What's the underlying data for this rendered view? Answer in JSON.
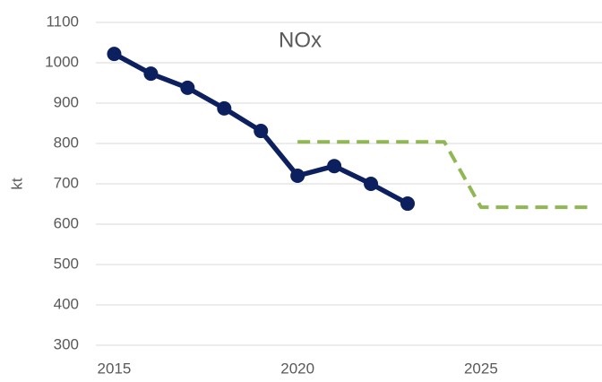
{
  "chart_data": {
    "type": "line",
    "title": "NOx",
    "y_label": "kt",
    "series": [
      {
        "color": "#0c1f5e",
        "x": [
          2015,
          2016,
          2017,
          2018,
          2019,
          2020,
          2021,
          2022,
          2023
        ],
        "values": [
          1022,
          973,
          938,
          887,
          831,
          720,
          744,
          700,
          651
        ],
        "markers": true,
        "dashed": false
      },
      {
        "color": "#8fb753",
        "x": [
          2020,
          2024,
          2025,
          2028
        ],
        "values": [
          804,
          804,
          642,
          642
        ],
        "markers": false,
        "dashed": true
      }
    ],
    "xlim": [
      2014.5,
      2028.3
    ],
    "xticks": [
      2015,
      2020,
      2025
    ],
    "ylim": [
      300,
      1100
    ],
    "yticks": [
      300,
      400,
      500,
      600,
      700,
      800,
      900,
      1000,
      1100
    ],
    "grid": true
  }
}
